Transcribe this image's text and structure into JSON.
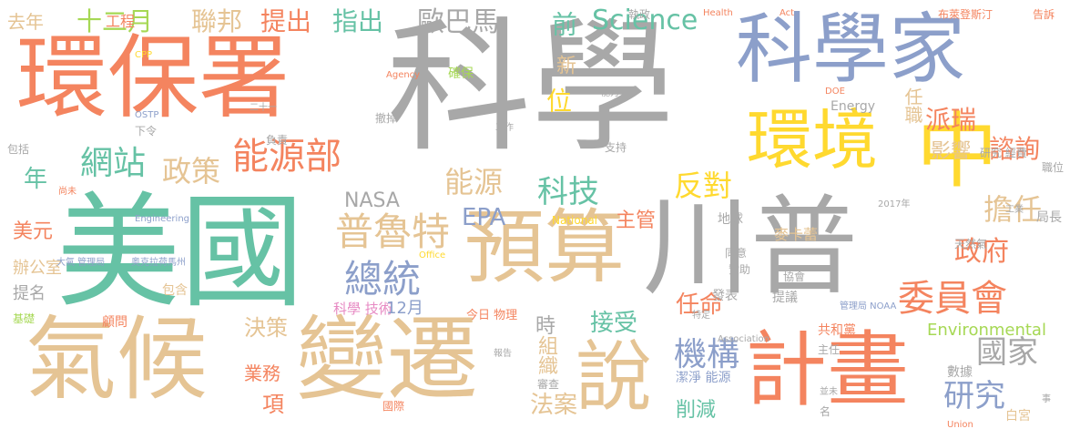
{
  "palette": {
    "orange": "#f4845f",
    "gray": "#a8a8a8",
    "blue": "#8c9fca",
    "green": "#66c2a5",
    "tan": "#e5c494",
    "yellow": "#ffd92f",
    "lime": "#a6d854",
    "pink": "#e78ac3"
  },
  "words": [
    "科學",
    "美國",
    "川普",
    "環保署",
    "氣候",
    "變遷",
    "科學家",
    "預算",
    "中",
    "計畫",
    "環境",
    "說",
    "普魯特",
    "總統",
    "能源部",
    "委員會",
    "政府",
    "機構",
    "網站",
    "政策",
    "能源",
    "科技",
    "擔任",
    "國家",
    "研究",
    "反對",
    "Science",
    "EPA",
    "NASA",
    "Environmental",
    "十二月",
    "歐巴馬",
    "聯邦",
    "提出",
    "指出",
    "去年",
    "工程",
    "月",
    "前",
    "新",
    "位",
    "派瑞",
    "諮詢",
    "影響",
    "任職",
    "組織",
    "法案",
    "時",
    "任命",
    "接受",
    "決策",
    "業務",
    "項",
    "主管",
    "削減",
    "年",
    "美元",
    "辦公室",
    "提名",
    "基礎",
    "顧問",
    "包含",
    "科學 技術",
    "12月",
    "今日 物理",
    "Energy",
    "地球",
    "麥卡蕾",
    "共和黨",
    "同意",
    "贊助",
    "發表",
    "提議",
    "協會",
    "白宮",
    "數據",
    "職位",
    "局長",
    "研究 經費",
    "確保",
    "撤掉",
    "支持",
    "工作",
    "負責",
    "執政",
    "Health",
    "Act",
    "布萊登斯汀",
    "告訴",
    "能力",
    "DOE",
    "Agency",
    "OSTP",
    "CPP",
    "OECD",
    "二十一",
    "下令",
    "包括",
    "尚未",
    "畢",
    "天然氣",
    "工業",
    "國際",
    "審查",
    "潔淨 能源",
    "管理局 NOAA",
    "主任",
    "特定",
    "報告",
    "並未",
    "名",
    "事",
    "Union",
    "National",
    "Engineering",
    "Association",
    "Office",
    "2017年",
    "大氣 管理局",
    "奥克拉荷馬州"
  ]
}
